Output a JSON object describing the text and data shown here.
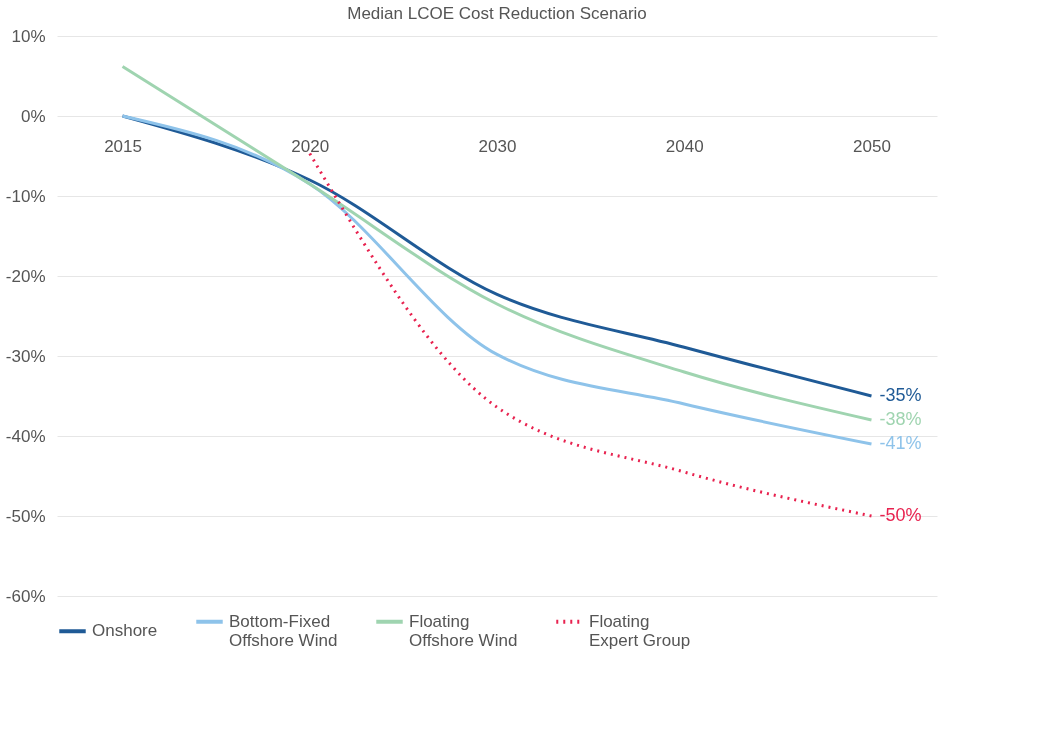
{
  "chart_data": {
    "type": "line",
    "title": "Median LCOE Cost Reduction Scenario",
    "categories": [
      "2015",
      "2020",
      "2030",
      "2040",
      "2050"
    ],
    "ylim": [
      -60,
      10
    ],
    "yticks": [
      {
        "value": 10,
        "label": "10%"
      },
      {
        "value": 0,
        "label": "0%"
      },
      {
        "value": -10,
        "label": "-10%"
      },
      {
        "value": -20,
        "label": "-20%"
      },
      {
        "value": -30,
        "label": "-30%"
      },
      {
        "value": -40,
        "label": "-40%"
      },
      {
        "value": -50,
        "label": "-50%"
      },
      {
        "value": -60,
        "label": "-60%"
      }
    ],
    "grid": "y",
    "legend": "bottom",
    "series": [
      {
        "name": "Onshore",
        "color": "#1f5a96",
        "line_style": "solid",
        "values": [
          0,
          -8,
          -22.3,
          -28.9,
          -35
        ]
      },
      {
        "name": "Bottom-Fixed\nOffshore Wind",
        "color": "#8ec3ea",
        "line_style": "solid",
        "values": [
          0,
          -8.5,
          -29.8,
          -36,
          -41
        ]
      },
      {
        "name": "Floating\nOffshore Wind",
        "color": "#9fd4b0",
        "line_style": "solid",
        "values": [
          6.2,
          -8.5,
          -23.5,
          -32,
          -38
        ]
      },
      {
        "name": "Floating\nExpert Group",
        "color": "#e8224f",
        "line_style": "dotted",
        "values": [
          null,
          -4.7,
          -36.4,
          -44.5,
          -50
        ]
      }
    ],
    "annotations": [
      {
        "text": "-35%",
        "x": "2050",
        "y": -35
      },
      {
        "text": "-38%",
        "x": "2050",
        "y": -38
      },
      {
        "text": "-41%",
        "x": "2050",
        "y": -41
      },
      {
        "text": "-50%",
        "x": "2050",
        "y": -50
      }
    ]
  }
}
